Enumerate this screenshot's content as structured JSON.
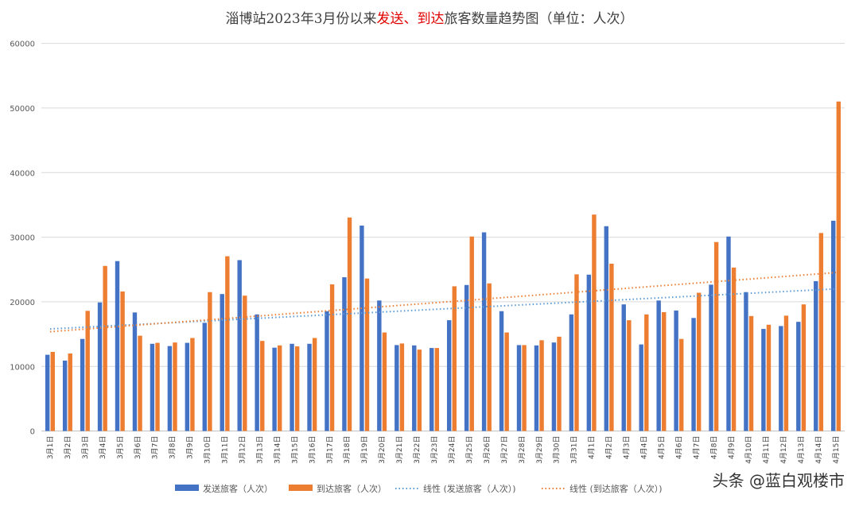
{
  "chart_data": {
    "type": "bar",
    "title_parts": [
      {
        "text": "淄博站2023年3月份以来",
        "color": "#404040"
      },
      {
        "text": "发送、到达",
        "color": "#e00000"
      },
      {
        "text": "旅客数量趋势图（单位：人次）",
        "color": "#404040"
      }
    ],
    "xlabel": "",
    "ylabel": "",
    "ylim": [
      0,
      60000
    ],
    "yticks": [
      0,
      10000,
      20000,
      30000,
      40000,
      50000,
      60000
    ],
    "grid": true,
    "legend_position": "bottom",
    "categories": [
      "3月1日",
      "3月2日",
      "3月3日",
      "3月4日",
      "3月5日",
      "3月6日",
      "3月7日",
      "3月8日",
      "3月9日",
      "3月10日",
      "3月11日",
      "3月12日",
      "3月13日",
      "3月14日",
      "3月15日",
      "3月16日",
      "3月17日",
      "3月18日",
      "3月19日",
      "3月20日",
      "3月21日",
      "3月22日",
      "3月23日",
      "3月24日",
      "3月25日",
      "3月26日",
      "3月27日",
      "3月28日",
      "3月29日",
      "3月30日",
      "3月31日",
      "4月1日",
      "4月2日",
      "4月3日",
      "4月4日",
      "4月5日",
      "4月6日",
      "4月7日",
      "4月8日",
      "4月9日",
      "4月10日",
      "4月11日",
      "4月12日",
      "4月13日",
      "4月14日",
      "4月15日"
    ],
    "series": [
      {
        "name": "发送旅客（人次）",
        "color": "#4472c4",
        "values": [
          11800,
          10900,
          14250,
          19900,
          26300,
          18350,
          13500,
          13150,
          13650,
          16750,
          21200,
          26450,
          18050,
          12900,
          13500,
          13500,
          18550,
          23800,
          31800,
          20200,
          13300,
          13250,
          12850,
          17150,
          22600,
          30750,
          18550,
          13300,
          13250,
          13700,
          18050,
          24200,
          31700,
          19600,
          13400,
          20200,
          18650,
          17500,
          22650,
          30100,
          21500,
          15800,
          16250,
          16900,
          23200,
          32550
        ]
      },
      {
        "name": "到达旅客（人次）",
        "color": "#ed7d31",
        "values": [
          12250,
          12000,
          18600,
          25550,
          21600,
          14750,
          13650,
          13700,
          14400,
          21500,
          27050,
          20950,
          13950,
          13250,
          13100,
          14400,
          22700,
          33050,
          23600,
          15250,
          13550,
          12600,
          12850,
          22400,
          30100,
          22850,
          15250,
          13300,
          14050,
          14600,
          24250,
          33500,
          25900,
          17150,
          18050,
          18400,
          14250,
          21400,
          29250,
          25300,
          17800,
          16450,
          17850,
          19600,
          30650,
          51000
        ]
      }
    ],
    "trendlines": [
      {
        "name": "线性 (发送旅客（人次）)",
        "of_series": 0,
        "kind": "linear",
        "color": "#5b9bd5"
      },
      {
        "name": "线性 (到达旅客（人次）)",
        "of_series": 1,
        "kind": "linear",
        "color": "#ed7d31"
      }
    ]
  },
  "watermark": "头条 @蓝白观楼市"
}
